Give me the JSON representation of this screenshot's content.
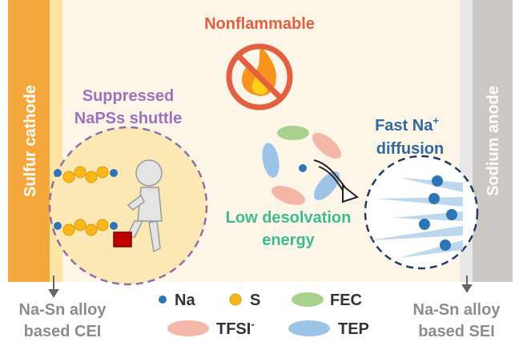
{
  "title": "Nonflammable",
  "left_bar": "Sulfur cathode",
  "right_bar": "Sodium anode",
  "left_circle": {
    "line1": "Suppressed",
    "line2": "NaPSs shuttle"
  },
  "right_circle": {
    "line1": "Fast Na",
    "line1_sup": "+",
    "line2": "diffusion"
  },
  "center": {
    "line1": "Low desolvation",
    "line2": "energy"
  },
  "bottom_left": {
    "line1": "Na-Sn alloy",
    "line2": "based CEI"
  },
  "bottom_right": {
    "line1": "Na-Sn alloy",
    "line2": "based SEI"
  },
  "legend": {
    "na": "Na",
    "s": "S",
    "fec": "FEC",
    "tfsi": "TFSI",
    "tfsi_sup": "-",
    "tep": "TEP"
  }
}
